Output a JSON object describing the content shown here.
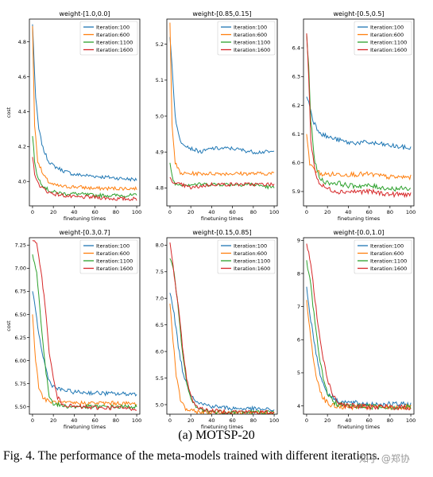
{
  "figure": {
    "subcaption": "(a) MOTSP-20",
    "caption": "Fig. 4.  The performance of the meta-models trained with different iterations.",
    "watermark": "知乎 @郑协"
  },
  "colors": {
    "Iteration:100": "#1f77b4",
    "Iteration:600": "#ff7f0e",
    "Iteration:1100": "#2ca02c",
    "Iteration:1600": "#d62728"
  },
  "chart_data": [
    {
      "type": "line",
      "title": "weight-[1.0,0.0]",
      "xlabel": "finetuning times",
      "ylabel": "cost",
      "xlim": [
        -3,
        103
      ],
      "ylim": [
        3.86,
        4.93
      ],
      "xticks": [
        0,
        20,
        40,
        60,
        80,
        100
      ],
      "yticks": [
        4.0,
        4.2,
        4.4,
        4.6,
        4.8
      ],
      "ytick_labels": [
        "4.0",
        "4.2",
        "4.4",
        "4.6",
        "4.8"
      ],
      "legend": "top-right",
      "noise": 0.01,
      "series": [
        {
          "name": "Iteration:100",
          "x": [
            0,
            3,
            6,
            10,
            15,
            20,
            30,
            40,
            60,
            80,
            100
          ],
          "y": [
            4.9,
            4.48,
            4.3,
            4.19,
            4.12,
            4.09,
            4.06,
            4.04,
            4.03,
            4.02,
            4.01
          ]
        },
        {
          "name": "Iteration:600",
          "x": [
            0,
            2,
            5,
            10,
            15,
            20,
            30,
            40,
            60,
            80,
            100
          ],
          "y": [
            4.89,
            4.32,
            4.12,
            4.04,
            4.0,
            3.98,
            3.97,
            3.97,
            3.96,
            3.96,
            3.96
          ]
        },
        {
          "name": "Iteration:1100",
          "x": [
            0,
            2,
            5,
            10,
            15,
            20,
            30,
            40,
            60,
            80,
            100
          ],
          "y": [
            4.26,
            4.12,
            4.02,
            3.98,
            3.95,
            3.94,
            3.93,
            3.93,
            3.92,
            3.92,
            3.92
          ]
        },
        {
          "name": "Iteration:1600",
          "x": [
            0,
            2,
            5,
            10,
            15,
            20,
            30,
            40,
            60,
            80,
            100
          ],
          "y": [
            4.14,
            4.05,
            3.99,
            3.96,
            3.94,
            3.93,
            3.92,
            3.91,
            3.91,
            3.9,
            3.9
          ]
        }
      ]
    },
    {
      "type": "line",
      "title": "weight-[0.85,0.15]",
      "xlabel": "finetuning times",
      "ylabel": "",
      "xlim": [
        -3,
        103
      ],
      "ylim": [
        4.75,
        5.27
      ],
      "xticks": [
        0,
        20,
        40,
        60,
        80,
        100
      ],
      "yticks": [
        4.8,
        4.9,
        5.0,
        5.1,
        5.2
      ],
      "ytick_labels": [
        "4.8",
        "4.9",
        "5.0",
        "5.1",
        "5.2"
      ],
      "legend": "top-right",
      "noise": 0.01,
      "series": [
        {
          "name": "Iteration:100",
          "x": [
            0,
            2,
            5,
            8,
            10,
            15,
            20,
            30,
            40,
            60,
            80,
            100
          ],
          "y": [
            5.22,
            5.14,
            5.0,
            4.95,
            4.93,
            4.92,
            4.91,
            4.9,
            4.91,
            4.91,
            4.9,
            4.9
          ]
        },
        {
          "name": "Iteration:600",
          "x": [
            0,
            2,
            5,
            10,
            15,
            20,
            30,
            40,
            60,
            80,
            100
          ],
          "y": [
            5.26,
            4.98,
            4.87,
            4.84,
            4.84,
            4.84,
            4.84,
            4.84,
            4.84,
            4.84,
            4.84
          ]
        },
        {
          "name": "Iteration:1100",
          "x": [
            0,
            3,
            6,
            10,
            20,
            40,
            60,
            80,
            100
          ],
          "y": [
            4.87,
            4.82,
            4.81,
            4.81,
            4.81,
            4.81,
            4.81,
            4.81,
            4.8
          ]
        },
        {
          "name": "Iteration:1600",
          "x": [
            0,
            5,
            10,
            20,
            40,
            60,
            80,
            100
          ],
          "y": [
            4.83,
            4.81,
            4.81,
            4.8,
            4.81,
            4.81,
            4.81,
            4.81
          ]
        }
      ]
    },
    {
      "type": "line",
      "title": "weight-[0.5,0.5]",
      "xlabel": "finetuning times",
      "ylabel": "",
      "xlim": [
        -3,
        103
      ],
      "ylim": [
        5.85,
        6.5
      ],
      "xticks": [
        0,
        20,
        40,
        60,
        80,
        100
      ],
      "yticks": [
        5.9,
        6.0,
        6.1,
        6.2,
        6.3,
        6.4
      ],
      "ytick_labels": [
        "5.9",
        "6.0",
        "6.1",
        "6.2",
        "6.3",
        "6.4"
      ],
      "legend": "top-right",
      "noise": 0.013,
      "series": [
        {
          "name": "Iteration:100",
          "x": [
            0,
            3,
            6,
            10,
            15,
            20,
            30,
            40,
            60,
            80,
            100
          ],
          "y": [
            6.23,
            6.2,
            6.15,
            6.12,
            6.1,
            6.09,
            6.08,
            6.07,
            6.07,
            6.06,
            6.05
          ]
        },
        {
          "name": "Iteration:600",
          "x": [
            0,
            3,
            6,
            10,
            15,
            20,
            30,
            40,
            60,
            80,
            100
          ],
          "y": [
            6.1,
            6.0,
            5.98,
            5.97,
            5.96,
            5.96,
            5.96,
            5.96,
            5.96,
            5.95,
            5.95
          ]
        },
        {
          "name": "Iteration:1100",
          "x": [
            0,
            2,
            4,
            8,
            12,
            15,
            20,
            30,
            40,
            60,
            80,
            100
          ],
          "y": [
            6.45,
            6.33,
            6.15,
            6.0,
            5.95,
            5.94,
            5.93,
            5.93,
            5.92,
            5.92,
            5.91,
            5.91
          ]
        },
        {
          "name": "Iteration:1600",
          "x": [
            0,
            2,
            4,
            8,
            12,
            15,
            20,
            30,
            40,
            60,
            80,
            100
          ],
          "y": [
            6.45,
            6.3,
            6.08,
            5.97,
            5.93,
            5.92,
            5.91,
            5.9,
            5.9,
            5.9,
            5.89,
            5.89
          ]
        }
      ]
    },
    {
      "type": "line",
      "title": "weight-[0.3,0.7]",
      "xlabel": "finetuning times",
      "ylabel": "cost",
      "xlim": [
        -3,
        103
      ],
      "ylim": [
        5.42,
        7.33
      ],
      "xticks": [
        0,
        20,
        40,
        60,
        80,
        100
      ],
      "yticks": [
        5.5,
        5.75,
        6.0,
        6.25,
        6.5,
        6.75,
        7.0,
        7.25
      ],
      "ytick_labels": [
        "5.50",
        "5.75",
        "6.00",
        "6.25",
        "6.50",
        "6.75",
        "7.00",
        "7.25"
      ],
      "legend": "top-right",
      "noise": 0.012,
      "series": [
        {
          "name": "Iteration:100",
          "x": [
            0,
            4,
            8,
            12,
            16,
            20,
            25,
            30,
            40,
            60,
            80,
            100
          ],
          "y": [
            6.75,
            6.45,
            6.15,
            5.95,
            5.78,
            5.72,
            5.69,
            5.68,
            5.66,
            5.65,
            5.64,
            5.64
          ]
        },
        {
          "name": "Iteration:600",
          "x": [
            0,
            3,
            6,
            10,
            15,
            20,
            30,
            40,
            60,
            80,
            100
          ],
          "y": [
            6.5,
            6.0,
            5.72,
            5.6,
            5.56,
            5.55,
            5.54,
            5.54,
            5.54,
            5.54,
            5.53
          ]
        },
        {
          "name": "Iteration:1100",
          "x": [
            0,
            4,
            8,
            12,
            16,
            20,
            25,
            30,
            40,
            60,
            80,
            100
          ],
          "y": [
            7.15,
            6.95,
            6.45,
            5.95,
            5.62,
            5.54,
            5.52,
            5.51,
            5.5,
            5.5,
            5.5,
            5.5
          ]
        },
        {
          "name": "Iteration:1600",
          "x": [
            0,
            4,
            8,
            12,
            16,
            20,
            24,
            28,
            35,
            40,
            60,
            80,
            100
          ],
          "y": [
            7.3,
            7.25,
            7.0,
            6.6,
            6.1,
            5.8,
            5.6,
            5.54,
            5.51,
            5.5,
            5.49,
            5.49,
            5.48
          ]
        }
      ]
    },
    {
      "type": "line",
      "title": "weight-[0.15,0.85]",
      "xlabel": "finetuning times",
      "ylabel": "",
      "xlim": [
        -3,
        103
      ],
      "ylim": [
        4.82,
        8.14
      ],
      "xticks": [
        0,
        20,
        40,
        60,
        80,
        100
      ],
      "yticks": [
        5.0,
        5.5,
        6.0,
        6.5,
        7.0,
        7.5,
        8.0
      ],
      "ytick_labels": [
        "5.0",
        "5.5",
        "6.0",
        "6.5",
        "7.0",
        "7.5",
        "8.0"
      ],
      "legend": "top-right",
      "noise": 0.012,
      "series": [
        {
          "name": "Iteration:100",
          "x": [
            0,
            4,
            8,
            12,
            16,
            20,
            25,
            30,
            40,
            50,
            60,
            80,
            100
          ],
          "y": [
            7.1,
            6.7,
            6.1,
            5.65,
            5.38,
            5.2,
            5.08,
            5.02,
            4.97,
            4.95,
            4.93,
            4.92,
            4.9
          ]
        },
        {
          "name": "Iteration:600",
          "x": [
            0,
            3,
            6,
            10,
            15,
            20,
            30,
            40,
            60,
            80,
            100
          ],
          "y": [
            6.9,
            6.2,
            5.55,
            5.1,
            4.92,
            4.88,
            4.86,
            4.85,
            4.85,
            4.84,
            4.84
          ]
        },
        {
          "name": "Iteration:1100",
          "x": [
            0,
            4,
            8,
            12,
            16,
            20,
            25,
            30,
            40,
            60,
            80,
            100
          ],
          "y": [
            7.75,
            7.5,
            6.8,
            5.95,
            5.4,
            5.1,
            4.95,
            4.9,
            4.87,
            4.86,
            4.86,
            4.85
          ]
        },
        {
          "name": "Iteration:1600",
          "x": [
            0,
            4,
            8,
            12,
            16,
            20,
            25,
            30,
            40,
            60,
            80,
            100
          ],
          "y": [
            8.05,
            7.45,
            6.85,
            6.1,
            5.5,
            5.15,
            4.98,
            4.92,
            4.88,
            4.87,
            4.86,
            4.85
          ]
        }
      ]
    },
    {
      "type": "line",
      "title": "weight-[0.0,1.0]",
      "xlabel": "finetuning times",
      "ylabel": "",
      "xlim": [
        -3,
        103
      ],
      "ylim": [
        3.75,
        9.08
      ],
      "xticks": [
        0,
        20,
        40,
        60,
        80,
        100
      ],
      "yticks": [
        4,
        5,
        6,
        7,
        8,
        9
      ],
      "ytick_labels": [
        "4",
        "5",
        "6",
        "7",
        "8",
        "9"
      ],
      "legend": "top-right",
      "noise": 0.015,
      "series": [
        {
          "name": "Iteration:100",
          "x": [
            0,
            4,
            8,
            12,
            16,
            20,
            25,
            30,
            40,
            50,
            60,
            80,
            100
          ],
          "y": [
            7.6,
            6.6,
            5.8,
            5.1,
            4.65,
            4.4,
            4.25,
            4.15,
            4.1,
            4.07,
            4.06,
            4.05,
            4.04
          ]
        },
        {
          "name": "Iteration:600",
          "x": [
            0,
            3,
            6,
            10,
            15,
            20,
            25,
            30,
            40,
            60,
            80,
            100
          ],
          "y": [
            7.2,
            6.3,
            5.5,
            4.8,
            4.3,
            4.08,
            4.0,
            3.98,
            3.97,
            3.97,
            3.96,
            3.96
          ]
        },
        {
          "name": "Iteration:1100",
          "x": [
            0,
            4,
            8,
            12,
            16,
            20,
            25,
            30,
            40,
            60,
            80,
            100
          ],
          "y": [
            8.4,
            7.6,
            6.5,
            5.5,
            4.8,
            4.4,
            4.15,
            4.05,
            4.0,
            3.98,
            3.97,
            3.96
          ]
        },
        {
          "name": "Iteration:1600",
          "x": [
            0,
            4,
            8,
            12,
            16,
            20,
            25,
            30,
            35,
            40,
            60,
            80,
            100
          ],
          "y": [
            8.9,
            8.3,
            7.2,
            6.2,
            5.4,
            4.8,
            4.35,
            4.15,
            4.05,
            4.0,
            3.97,
            3.96,
            3.95
          ]
        }
      ]
    }
  ]
}
